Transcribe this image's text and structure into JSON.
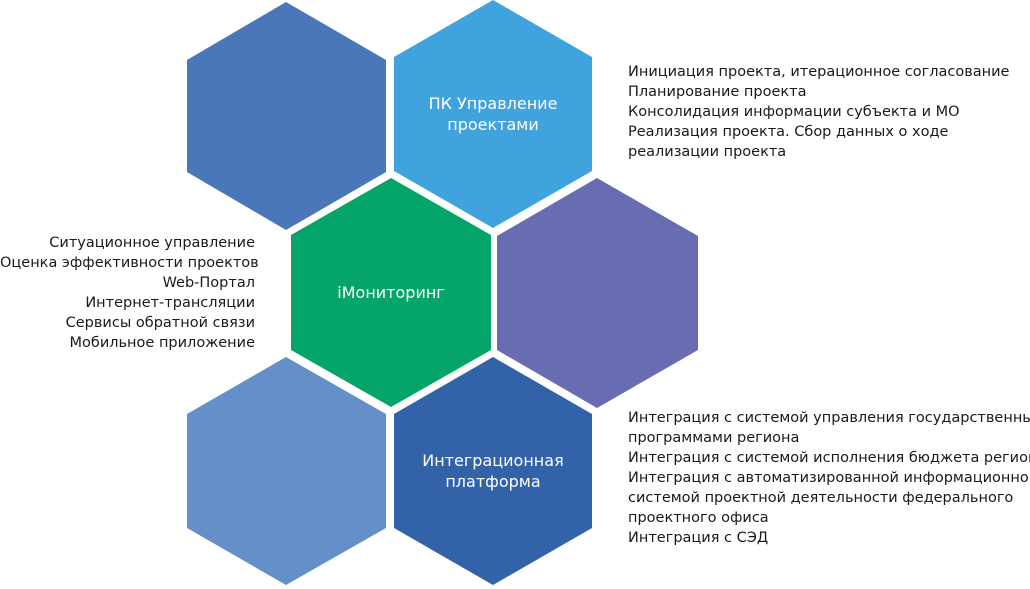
{
  "colors": {
    "hex_top_left": "#4a76ba",
    "hex_top_right": "#40a3dd",
    "hex_center": "#04a46a",
    "hex_right": "#676db0",
    "hex_bottom_left": "#648fc8",
    "hex_bottom_right": "#3262a8",
    "text": "#1a1a1a",
    "label": "#ffffff"
  },
  "hexagons": {
    "top_right": {
      "label_lines": [
        "ПК Управление",
        "проектами"
      ]
    },
    "center": {
      "label_lines": [
        "iМониторинг"
      ]
    },
    "bottom_right": {
      "label_lines": [
        "Интеграционная",
        "платформа"
      ]
    }
  },
  "blocks": {
    "top_right": [
      "Инициация проекта, итерационное согласование",
      "Планирование проекта",
      "Консолидация информации субъекта и МО",
      "Реализация проекта. Сбор данных о ходе",
      "реализации проекта"
    ],
    "left": [
      "Ситуационное управление",
      "Оценка эффективности проектов",
      "Web-Портал",
      "Интернет-трансляции",
      "Сервисы обратной связи",
      "Мобильное приложение"
    ],
    "bottom_right": [
      "Интеграция с системой управления государственными",
      "программами региона",
      "Интеграция с системой исполнения бюджета региона",
      "Интеграция с автоматизированной информационной",
      "системой проектной деятельности федерального",
      "проектного офиса",
      "Интеграция с СЭД"
    ]
  }
}
